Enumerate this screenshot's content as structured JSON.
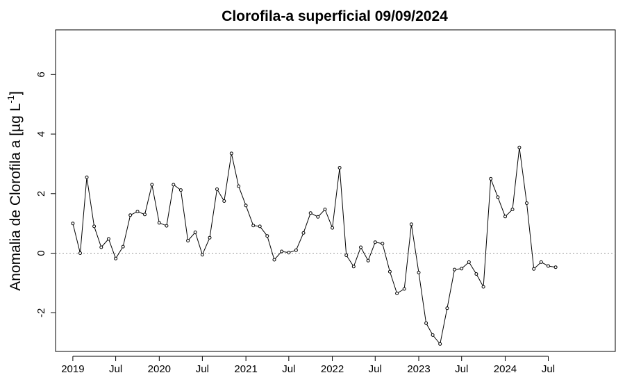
{
  "chart_data": {
    "type": "line",
    "title": "Clorofila-a superficial 09/09/2024",
    "ylabel": "Anomalia de Clorofila a [µg L",
    "ylabel_superscript": "-1",
    "ylabel_suffix": "]",
    "xlabel": "",
    "ylim": [
      -3.3,
      7.5
    ],
    "yticks": [
      -2,
      0,
      2,
      4,
      6
    ],
    "ytick_labels": [
      "-2",
      "0",
      "2",
      "4",
      "6"
    ],
    "xlim": [
      "2018-10-20",
      "2025-04-10"
    ],
    "xticks": [
      "2019-01-01",
      "2019-07-01",
      "2020-01-01",
      "2020-07-01",
      "2021-01-01",
      "2021-07-01",
      "2022-01-01",
      "2022-07-01",
      "2023-01-01",
      "2023-07-01",
      "2024-01-01",
      "2024-07-01"
    ],
    "xtick_labels": [
      "2019",
      "Jul",
      "2020",
      "Jul",
      "2021",
      "Jul",
      "2022",
      "Jul",
      "2023",
      "Jul",
      "2024",
      "Jul"
    ],
    "reference_line": {
      "y": 0,
      "style": "dotted",
      "color": "#999999"
    },
    "colors": {
      "line": "#000000",
      "points": "#000000",
      "axes": "#000000"
    },
    "grid": false,
    "series": [
      {
        "x": [
          "2019-01-01",
          "2019-02-01",
          "2019-03-01",
          "2019-04-01",
          "2019-05-01",
          "2019-06-01",
          "2019-07-01",
          "2019-08-01",
          "2019-09-01",
          "2019-10-01",
          "2019-11-01",
          "2019-12-01",
          "2020-01-01",
          "2020-02-01",
          "2020-03-01",
          "2020-04-01",
          "2020-05-01",
          "2020-06-01",
          "2020-07-01",
          "2020-08-01",
          "2020-09-01",
          "2020-10-01",
          "2020-11-01",
          "2020-12-01",
          "2021-01-01",
          "2021-02-01",
          "2021-03-01",
          "2021-04-01",
          "2021-05-01",
          "2021-06-01",
          "2021-07-01",
          "2021-08-01",
          "2021-09-01",
          "2021-10-01",
          "2021-11-01",
          "2021-12-01",
          "2022-01-01",
          "2022-02-01",
          "2022-03-01",
          "2022-04-01",
          "2022-05-01",
          "2022-06-01",
          "2022-07-01",
          "2022-08-01",
          "2022-09-01",
          "2022-10-01",
          "2022-11-01",
          "2022-12-01",
          "2023-01-01",
          "2023-02-01",
          "2023-03-01",
          "2023-04-01",
          "2023-05-01",
          "2023-06-01",
          "2023-07-01",
          "2023-08-01",
          "2023-09-01",
          "2023-10-01",
          "2023-11-01",
          "2023-12-01",
          "2024-01-01",
          "2024-02-01",
          "2024-03-01",
          "2024-04-01",
          "2024-05-01",
          "2024-06-01",
          "2024-07-01",
          "2024-08-01"
        ],
        "values": [
          1.0,
          0.0,
          2.55,
          0.9,
          0.2,
          0.48,
          -0.18,
          0.22,
          1.28,
          1.4,
          1.3,
          2.3,
          1.02,
          0.92,
          2.3,
          2.12,
          0.42,
          0.7,
          -0.05,
          0.52,
          2.15,
          1.75,
          3.35,
          2.25,
          1.6,
          0.93,
          0.9,
          0.58,
          -0.22,
          0.06,
          0.02,
          0.1,
          0.68,
          1.35,
          1.22,
          1.47,
          0.85,
          2.87,
          -0.07,
          -0.45,
          0.2,
          -0.25,
          0.37,
          0.32,
          -0.62,
          -1.35,
          -1.2,
          0.97,
          -0.65,
          -2.35,
          -2.75,
          -3.05,
          -1.85,
          -0.55,
          -0.52,
          -0.3,
          -0.7,
          -1.13,
          2.5,
          1.88,
          1.23,
          1.47,
          3.55,
          1.68,
          -0.53,
          -0.3,
          -0.43,
          -0.47
        ]
      }
    ]
  }
}
